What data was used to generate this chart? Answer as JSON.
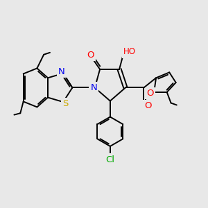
{
  "background_color": "#e8e8e8",
  "atom_colors": {
    "C": "#000000",
    "N": "#0000ee",
    "O": "#ff0000",
    "S": "#ccaa00",
    "Cl": "#00aa00",
    "H": "#555555"
  },
  "bond_color": "#000000",
  "bond_width": 1.4,
  "font_size": 8.5,
  "figsize": [
    3.0,
    3.0
  ],
  "dpi": 100,
  "xlim": [
    0,
    10
  ],
  "ylim": [
    0,
    10
  ]
}
